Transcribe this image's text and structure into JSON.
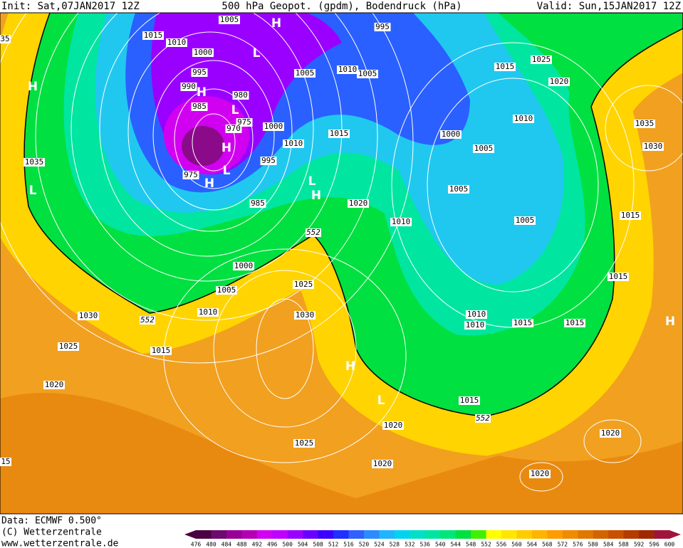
{
  "header": {
    "init": "Init: Sat,07JAN2017 12Z",
    "title": "500 hPa Geopot. (gpdm), Bodendruck (hPa)",
    "valid": "Valid: Sun,15JAN2017 12Z"
  },
  "footer": {
    "data": "Data: ECMWF  0.500°",
    "copyright": "(C) Wetterzentrale",
    "url": "www.wetterzentrale.de"
  },
  "isobar_labels": [
    1015,
    1010,
    1005,
    1000,
    995,
    990,
    985,
    980,
    975,
    970,
    975,
    1000,
    1010,
    995,
    985,
    1005,
    1010,
    1005,
    995,
    1015,
    1020,
    1010,
    1000,
    1005,
    1005,
    1005,
    1010,
    1015,
    1025,
    1020,
    1035,
    1030,
    1015,
    1015,
    1035,
    1000,
    1005,
    1010,
    1030,
    1025,
    1015,
    1020,
    1025,
    1030,
    1010,
    1010,
    1015,
    1015,
    1015,
    1020,
    1025,
    1020,
    1020,
    1020,
    35,
    15
  ],
  "contour_labels": [
    552,
    552,
    552
  ],
  "pressure_centers": [
    "H",
    "L",
    "H",
    "L",
    "H",
    "L",
    "H",
    "L",
    "H",
    "L",
    "H",
    "H",
    "L",
    "H"
  ],
  "colorbar": {
    "labels": [
      476,
      480,
      484,
      488,
      492,
      496,
      500,
      504,
      508,
      512,
      516,
      520,
      524,
      528,
      532,
      536,
      540,
      544,
      548,
      552,
      556,
      560,
      564,
      568,
      572,
      576,
      580,
      584,
      588,
      592,
      596,
      600
    ],
    "colors": [
      "#4b0042",
      "#6e0a6e",
      "#960096",
      "#b400b4",
      "#d200f0",
      "#c000ff",
      "#9a00ff",
      "#6a00ff",
      "#3a00ff",
      "#2030ff",
      "#3060ff",
      "#2a8cff",
      "#20b4ff",
      "#00d2f0",
      "#00e0c8",
      "#00e6a0",
      "#00e678",
      "#00e040",
      "#40f000",
      "#ffff00",
      "#ffe600",
      "#ffcc00",
      "#ffb400",
      "#ff9c00",
      "#f08c00",
      "#e07800",
      "#d26400",
      "#c85000",
      "#b43c00",
      "#a02800",
      "#a0143c"
    ]
  }
}
